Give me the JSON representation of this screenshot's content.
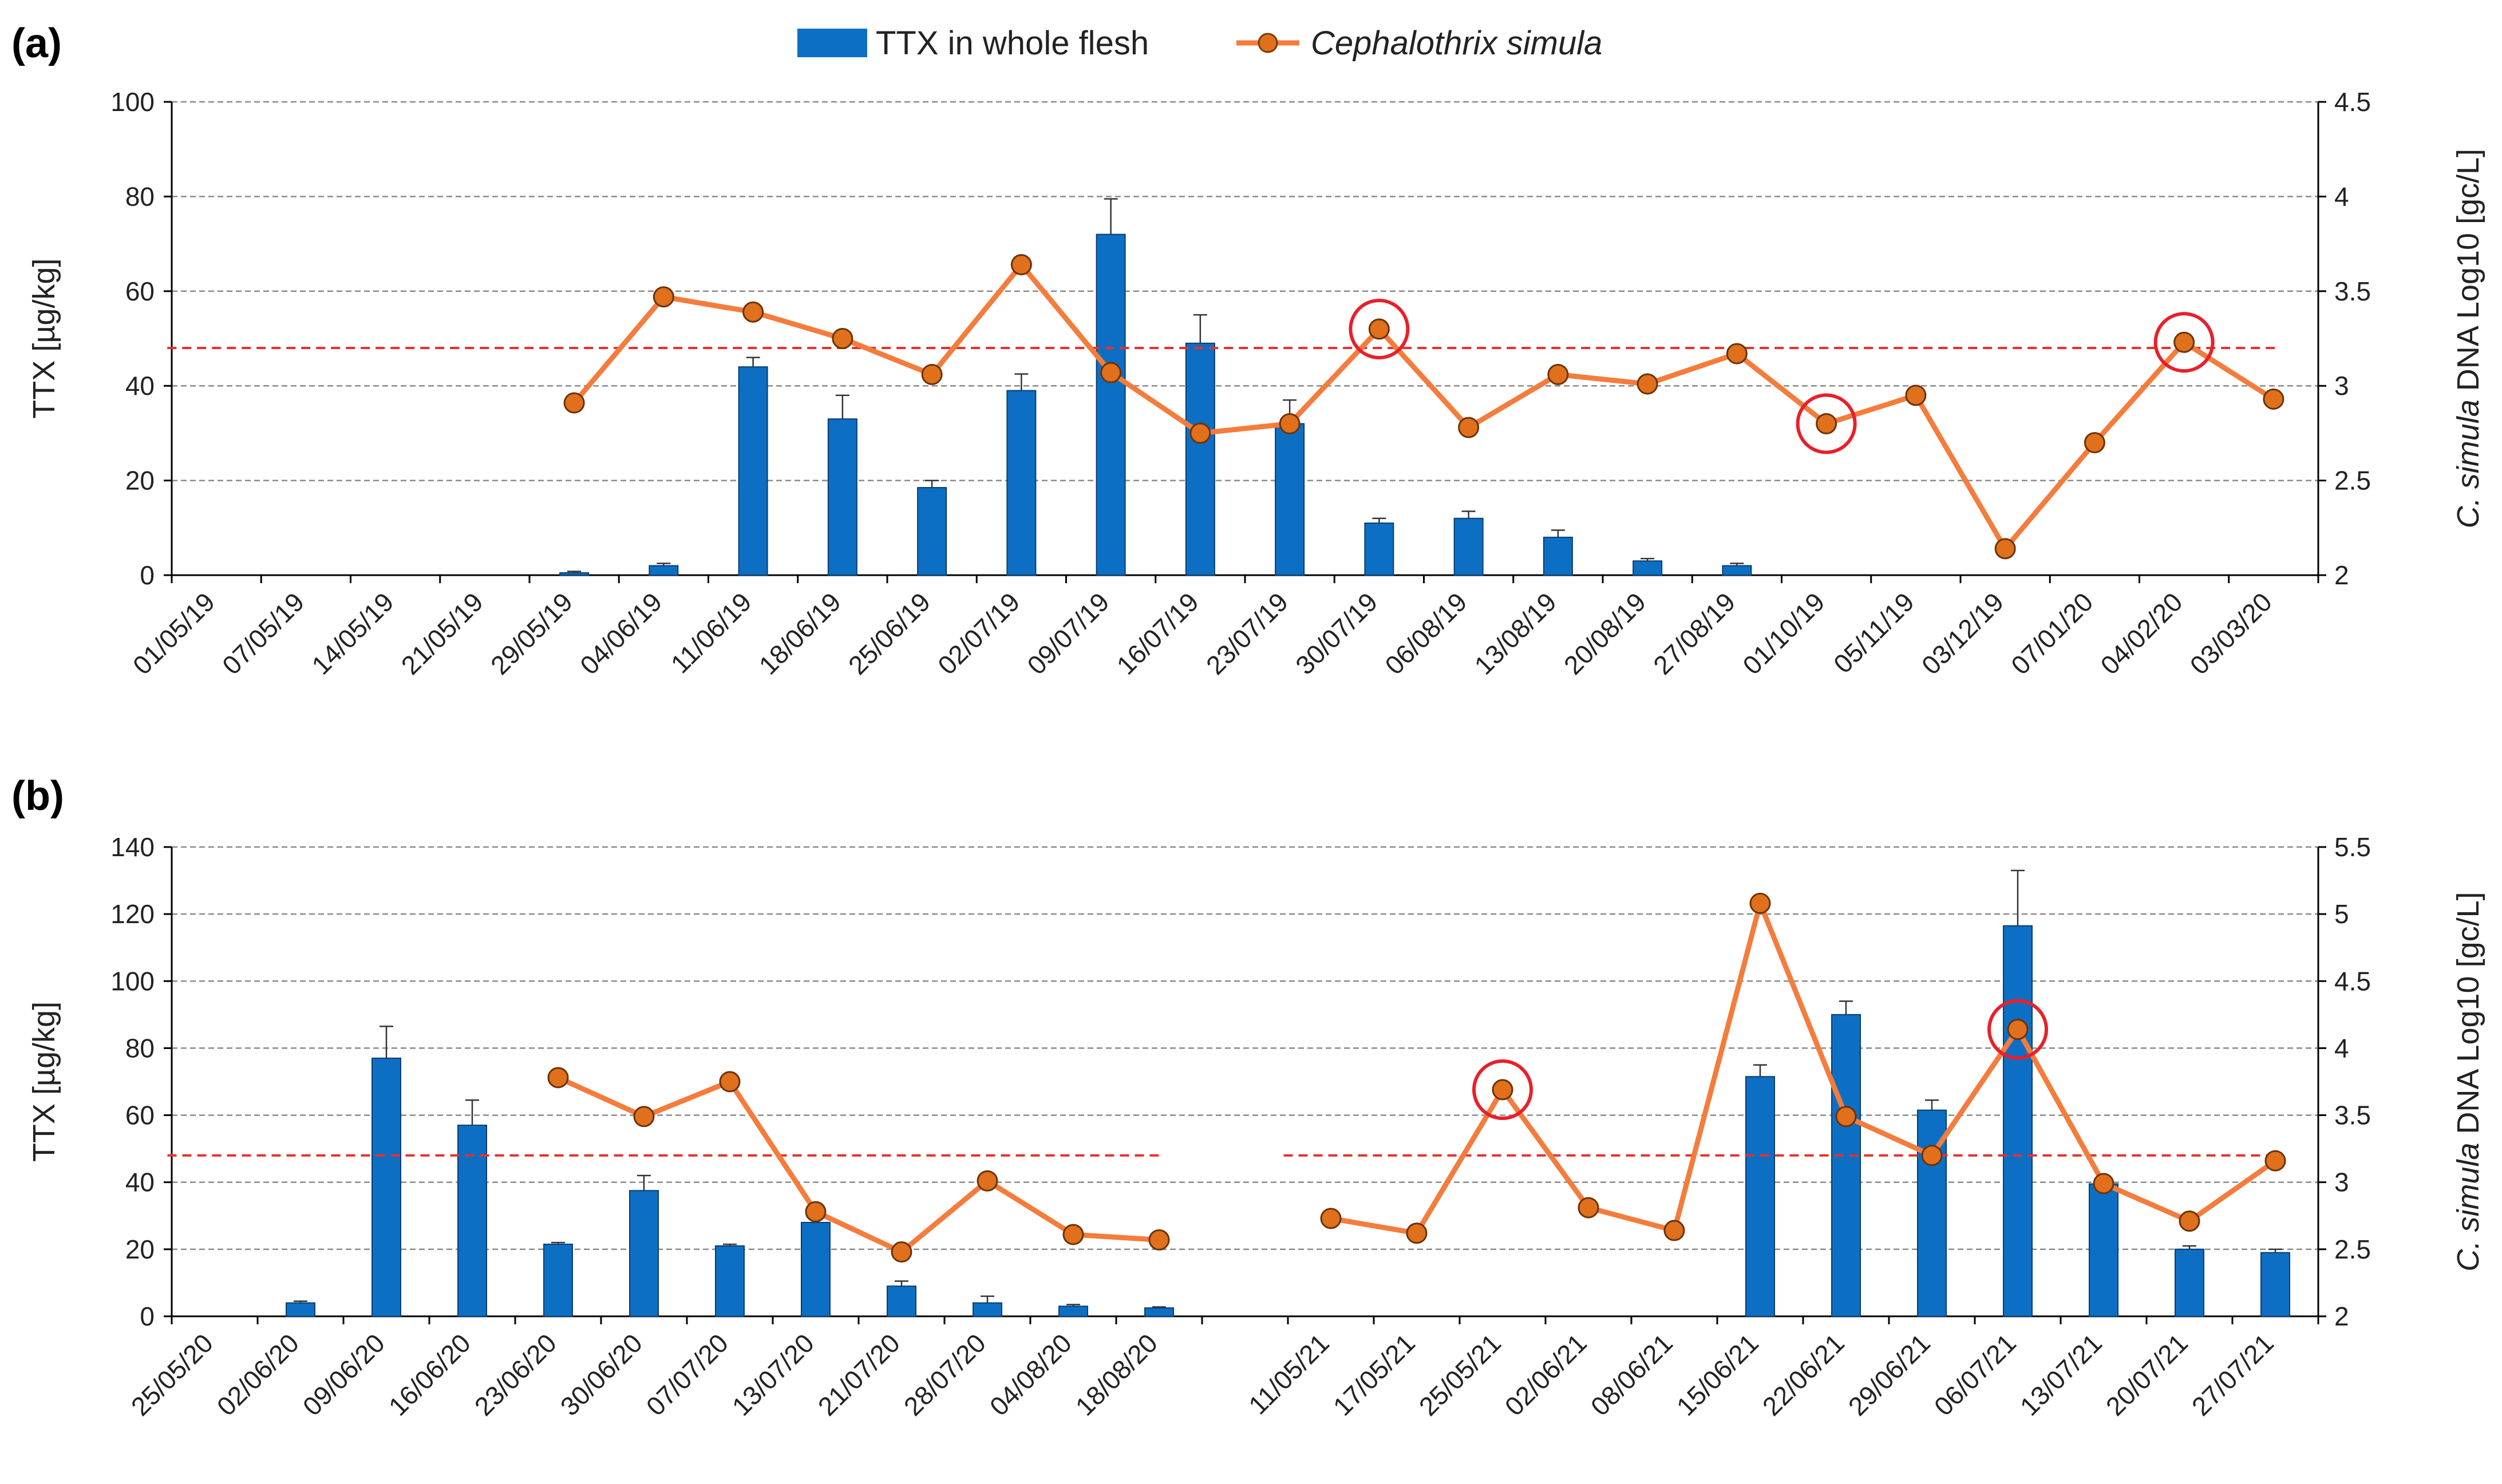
{
  "legend": {
    "bars": "TTX in whole flesh",
    "line": "Cephalothrix simula"
  },
  "colors": {
    "bar": "#0D6FC4",
    "line": "#F47C3C",
    "marker": "#E0701C",
    "threshold": "#E8302A",
    "circle": "#E8202A",
    "grid": "#8a8a8a"
  },
  "chart_data": [
    {
      "panel": "(a)",
      "type": "bar+line",
      "ylabel_left": "TTX [µg/kg]",
      "ylabel_right": {
        "italic": "C. simula",
        "rest": " DNA Log10 [gc/L]"
      },
      "ylim_left": [
        0,
        100
      ],
      "ylim_right": [
        2,
        4.5
      ],
      "yticks_left": [
        0,
        20,
        40,
        60,
        80,
        100
      ],
      "yticks_right": [
        2,
        2.5,
        3,
        3.5,
        4,
        4.5
      ],
      "ytick_labels_right": [
        "2",
        "2.5",
        "3",
        "3.5",
        "4",
        "4.5"
      ],
      "categories": [
        "01/05/19",
        "07/05/19",
        "14/05/19",
        "21/05/19",
        "29/05/19",
        "04/06/19",
        "11/06/19",
        "18/06/19",
        "25/06/19",
        "02/07/19",
        "09/07/19",
        "16/07/19",
        "23/07/19",
        "30/07/19",
        "06/08/19",
        "13/08/19",
        "20/08/19",
        "27/08/19",
        "01/10/19",
        "05/11/19",
        "03/12/19",
        "07/01/20",
        "04/02/20",
        "03/03/20"
      ],
      "series": [
        {
          "name": "TTX in whole flesh",
          "kind": "bar",
          "axis": "left",
          "values": [
            0,
            0,
            0,
            0,
            0.5,
            2,
            44,
            33,
            18.5,
            39,
            72,
            49,
            32,
            11,
            12,
            8,
            3,
            2,
            null,
            null,
            null,
            null,
            null,
            null
          ],
          "errors": [
            0,
            0,
            0,
            0,
            0.3,
            0.5,
            2,
            5,
            1.5,
            3.5,
            7.5,
            6,
            5,
            1,
            1.5,
            1.5,
            0.5,
            0.5,
            null,
            null,
            null,
            null,
            null,
            null
          ]
        },
        {
          "name": "Cephalothrix simula",
          "kind": "line",
          "axis": "right",
          "values": [
            null,
            null,
            null,
            null,
            2.91,
            3.47,
            3.39,
            3.25,
            3.06,
            3.64,
            3.07,
            2.75,
            2.8,
            3.3,
            2.78,
            3.06,
            3.01,
            3.17,
            2.8,
            2.95,
            2.14,
            2.7,
            3.23,
            2.93
          ],
          "circled": [
            13,
            18,
            22
          ]
        }
      ],
      "threshold_right": 3.2,
      "threshold_segments": [
        [
          0,
          23
        ]
      ]
    },
    {
      "panel": "(b)",
      "type": "bar+line",
      "ylabel_left": "TTX [µg/kg]",
      "ylabel_right": {
        "italic": "C. simula",
        "rest": " DNA Log10 [gc/L]"
      },
      "ylim_left": [
        0,
        140
      ],
      "ylim_right": [
        2,
        5.5
      ],
      "yticks_left": [
        0,
        20,
        40,
        60,
        80,
        100,
        120,
        140
      ],
      "yticks_right": [
        2,
        2.5,
        3,
        3.5,
        4,
        4.5,
        5,
        5.5
      ],
      "ytick_labels_right": [
        "2",
        "2.5",
        "3",
        "3.5",
        "4",
        "4.5",
        "5",
        "5.5"
      ],
      "categories": [
        "25/05/20",
        "02/06/20",
        "09/06/20",
        "16/06/20",
        "23/06/20",
        "30/06/20",
        "07/07/20",
        "13/07/20",
        "21/07/20",
        "28/07/20",
        "04/08/20",
        "18/08/20",
        "",
        "11/05/21",
        "17/05/21",
        "25/05/21",
        "02/06/21",
        "08/06/21",
        "15/06/21",
        "22/06/21",
        "29/06/21",
        "06/07/21",
        "13/07/21",
        "20/07/21",
        "27/07/21"
      ],
      "series": [
        {
          "name": "TTX in whole flesh",
          "kind": "bar",
          "axis": "left",
          "values": [
            0,
            4,
            77,
            57,
            21.5,
            37.5,
            21,
            28,
            9,
            4,
            3,
            2.5,
            null,
            null,
            null,
            null,
            null,
            null,
            71.5,
            90,
            61.5,
            116.5,
            39.5,
            20,
            19
          ],
          "errors": [
            0,
            0.5,
            9.5,
            7.5,
            0.5,
            4.5,
            0.5,
            1,
            1.5,
            2,
            0.5,
            0.3,
            null,
            null,
            null,
            null,
            null,
            null,
            3.5,
            4,
            3,
            16.5,
            1.5,
            1,
            1
          ]
        },
        {
          "name": "Cephalothrix simula",
          "kind": "line",
          "axis": "right",
          "values": [
            null,
            null,
            null,
            null,
            3.78,
            3.49,
            3.75,
            2.78,
            2.48,
            3.01,
            2.61,
            2.57,
            null,
            2.73,
            2.62,
            3.69,
            2.81,
            2.64,
            5.08,
            3.49,
            3.2,
            4.14,
            2.99,
            2.71,
            3.16
          ],
          "circled": [
            15,
            21
          ]
        }
      ],
      "threshold_right": 3.2,
      "threshold_segments": [
        [
          0,
          11
        ],
        [
          13,
          24
        ]
      ]
    }
  ]
}
